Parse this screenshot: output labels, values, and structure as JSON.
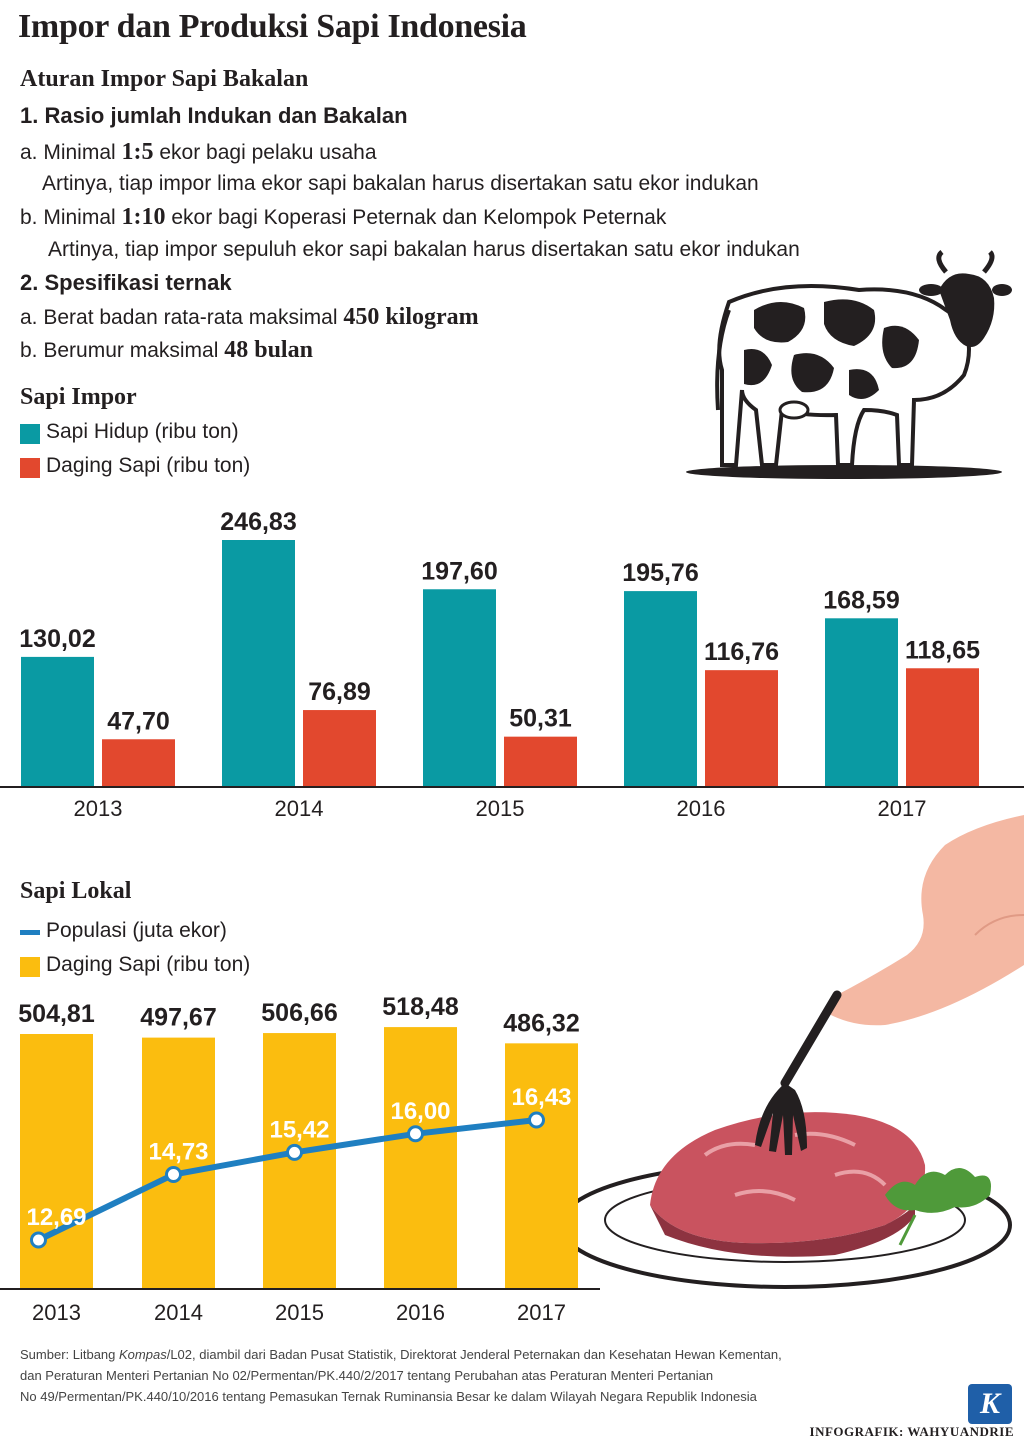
{
  "title": "Impor dan Produksi Sapi Indonesia",
  "rules": {
    "heading": "Aturan Impor Sapi Bakalan",
    "sec1": {
      "heading": "1. Rasio jumlah Indukan dan Bakalan",
      "a_pre": "a. Minimal ",
      "a_bold": "1:5",
      "a_post": " ekor bagi pelaku usaha",
      "a_note": "Artinya, tiap impor lima ekor sapi bakalan harus disertakan satu ekor indukan",
      "b_pre": "b. Minimal ",
      "b_bold": "1:10",
      "b_post": " ekor bagi Koperasi Peternak dan Kelompok Peternak",
      "b_note": "Artinya, tiap impor sepuluh ekor sapi bakalan harus disertakan satu ekor indukan"
    },
    "sec2": {
      "heading": "2. Spesifikasi ternak",
      "a_pre": "a. Berat badan rata-rata maksimal ",
      "a_bold": "450 kilogram",
      "b_pre": "b. Berumur maksimal ",
      "b_bold": "48 bulan"
    }
  },
  "impor": {
    "heading": "Sapi Impor",
    "legend": [
      "Sapi Hidup (ribu ton)",
      "Daging Sapi (ribu ton)"
    ]
  },
  "lokal": {
    "heading": "Sapi Lokal",
    "legend": [
      "Populasi (juta ekor)",
      "Daging Sapi (ribu ton)"
    ]
  },
  "colors": {
    "teal": "#0a9aa3",
    "red": "#e2482e",
    "yellow": "#fbbd0f",
    "blue": "#1f7fc1"
  },
  "icons": [
    "cow-illustration",
    "fork-hand-illustration",
    "meat-plate-illustration",
    "kompas-logo"
  ],
  "chart_data": [
    {
      "type": "bar",
      "title": "Sapi Impor",
      "categories": [
        "2013",
        "2014",
        "2015",
        "2016",
        "2017"
      ],
      "series": [
        {
          "name": "Sapi Hidup (ribu ton)",
          "values": [
            130.02,
            246.83,
            197.6,
            195.76,
            168.59
          ],
          "labels": [
            "130,02",
            "246,83",
            "197,60",
            "195,76",
            "168,59"
          ]
        },
        {
          "name": "Daging Sapi (ribu ton)",
          "values": [
            47.7,
            76.89,
            50.31,
            116.76,
            118.65
          ],
          "labels": [
            "47,70",
            "76,89",
            "50,31",
            "116,76",
            "118,65"
          ]
        }
      ]
    },
    {
      "type": "bar",
      "title": "Sapi Lokal",
      "categories": [
        "2013",
        "2014",
        "2015",
        "2016",
        "2017"
      ],
      "series": [
        {
          "name": "Daging Sapi (ribu ton)",
          "values": [
            504.81,
            497.67,
            506.66,
            518.48,
            486.32
          ],
          "labels": [
            "504,81",
            "497,67",
            "506,66",
            "518,48",
            "486,32"
          ]
        },
        {
          "name": "Populasi (juta ekor)",
          "type": "line",
          "values": [
            12.69,
            14.73,
            15.42,
            16.0,
            16.43
          ],
          "labels": [
            "12,69",
            "14,73",
            "15,42",
            "16,00",
            "16,43"
          ]
        }
      ]
    }
  ],
  "footer": {
    "line1_pre": "Sumber: Litbang ",
    "line1_italic": "Kompas",
    "line1_post": "/L02, diambil dari Badan Pusat Statistik, Direktorat Jenderal Peternakan dan Kesehatan Hewan Kementan,",
    "line2": "dan Peraturan Menteri Pertanian No 02/Permentan/PK.440/2/2017 tentang Perubahan atas Peraturan Menteri Pertanian",
    "line3": "No 49/Permentan/PK.440/10/2016 tentang Pemasukan Ternak Ruminansia Besar ke dalam Wilayah Negara Republik Indonesia",
    "credit": "INFOGRAFIK: WAHYUANDRIE",
    "logo_letter": "K"
  }
}
